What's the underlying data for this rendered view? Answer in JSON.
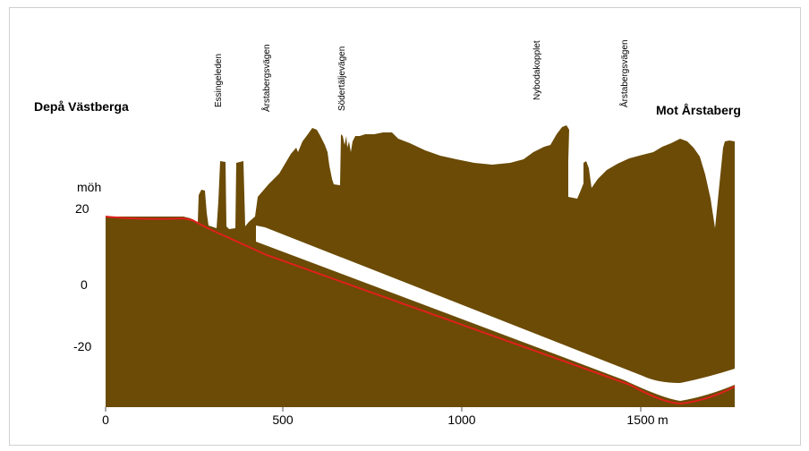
{
  "labels": {
    "left_end": "Depå Västberga",
    "right_end": "Mot Årstaberg",
    "unit_y": "möh",
    "unit_x": "m"
  },
  "streets": [
    {
      "name": "Essingeleden",
      "at_m": 330
    },
    {
      "name": "Årstabergsvägen",
      "at_m": 455
    },
    {
      "name": "Södertäljevägen",
      "at_m": 665
    },
    {
      "name": "Nybodakopplet",
      "at_m": 1215
    },
    {
      "name": "Årstabergsvägen",
      "at_m": 1455
    }
  ],
  "y_ticks": [
    "20",
    "0",
    "-20"
  ],
  "x_ticks": [
    "0",
    "500",
    "1000",
    "1500"
  ],
  "colors": {
    "ground": "#6b4b05",
    "tunnel": "#ffffff",
    "track_line": "#e0201c"
  }
}
